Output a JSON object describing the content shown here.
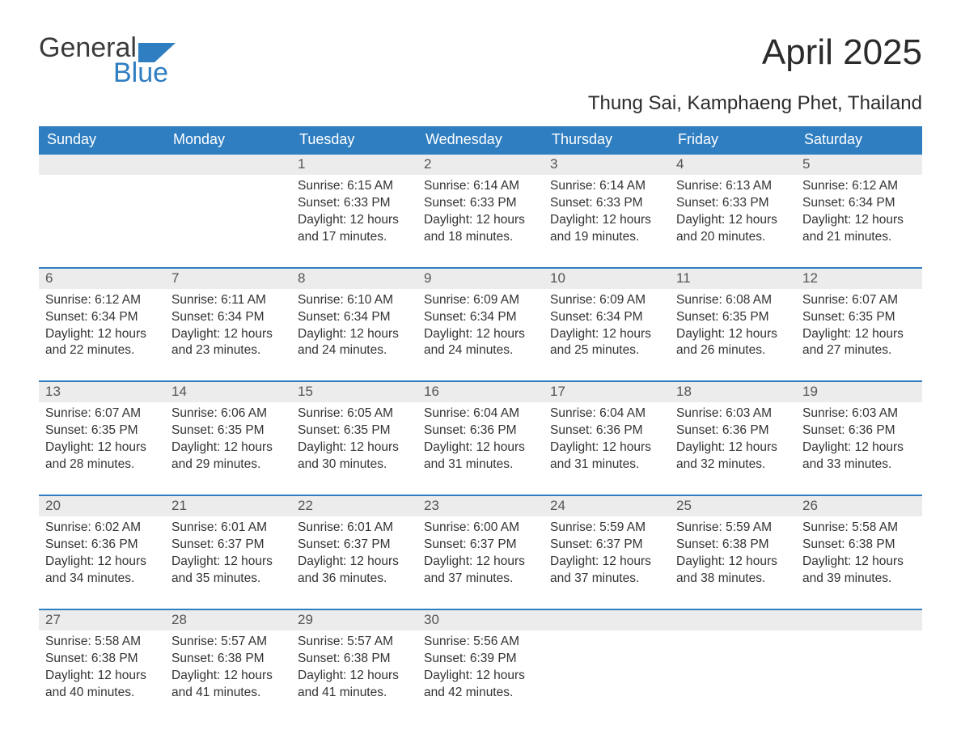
{
  "brand": {
    "word1": "General",
    "word2": "Blue",
    "logo_color": "#2f7ec1",
    "text_color": "#3b3b3b"
  },
  "title": "April 2025",
  "location": "Thung Sai, Kamphaeng Phet, Thailand",
  "colors": {
    "header_bg": "#2f7ec1",
    "header_text": "#ffffff",
    "strip_bg": "#ececec",
    "strip_border": "#2f7ec1",
    "body_text": "#333333",
    "daynum_text": "#555555",
    "page_bg": "#ffffff"
  },
  "weekdays": [
    "Sunday",
    "Monday",
    "Tuesday",
    "Wednesday",
    "Thursday",
    "Friday",
    "Saturday"
  ],
  "layout": {
    "columns": 7,
    "rows": 5,
    "first_day_column_index": 2
  },
  "days": [
    {
      "n": 1,
      "sunrise": "6:15 AM",
      "sunset": "6:33 PM",
      "daylight": "12 hours and 17 minutes."
    },
    {
      "n": 2,
      "sunrise": "6:14 AM",
      "sunset": "6:33 PM",
      "daylight": "12 hours and 18 minutes."
    },
    {
      "n": 3,
      "sunrise": "6:14 AM",
      "sunset": "6:33 PM",
      "daylight": "12 hours and 19 minutes."
    },
    {
      "n": 4,
      "sunrise": "6:13 AM",
      "sunset": "6:33 PM",
      "daylight": "12 hours and 20 minutes."
    },
    {
      "n": 5,
      "sunrise": "6:12 AM",
      "sunset": "6:34 PM",
      "daylight": "12 hours and 21 minutes."
    },
    {
      "n": 6,
      "sunrise": "6:12 AM",
      "sunset": "6:34 PM",
      "daylight": "12 hours and 22 minutes."
    },
    {
      "n": 7,
      "sunrise": "6:11 AM",
      "sunset": "6:34 PM",
      "daylight": "12 hours and 23 minutes."
    },
    {
      "n": 8,
      "sunrise": "6:10 AM",
      "sunset": "6:34 PM",
      "daylight": "12 hours and 24 minutes."
    },
    {
      "n": 9,
      "sunrise": "6:09 AM",
      "sunset": "6:34 PM",
      "daylight": "12 hours and 24 minutes."
    },
    {
      "n": 10,
      "sunrise": "6:09 AM",
      "sunset": "6:34 PM",
      "daylight": "12 hours and 25 minutes."
    },
    {
      "n": 11,
      "sunrise": "6:08 AM",
      "sunset": "6:35 PM",
      "daylight": "12 hours and 26 minutes."
    },
    {
      "n": 12,
      "sunrise": "6:07 AM",
      "sunset": "6:35 PM",
      "daylight": "12 hours and 27 minutes."
    },
    {
      "n": 13,
      "sunrise": "6:07 AM",
      "sunset": "6:35 PM",
      "daylight": "12 hours and 28 minutes."
    },
    {
      "n": 14,
      "sunrise": "6:06 AM",
      "sunset": "6:35 PM",
      "daylight": "12 hours and 29 minutes."
    },
    {
      "n": 15,
      "sunrise": "6:05 AM",
      "sunset": "6:35 PM",
      "daylight": "12 hours and 30 minutes."
    },
    {
      "n": 16,
      "sunrise": "6:04 AM",
      "sunset": "6:36 PM",
      "daylight": "12 hours and 31 minutes."
    },
    {
      "n": 17,
      "sunrise": "6:04 AM",
      "sunset": "6:36 PM",
      "daylight": "12 hours and 31 minutes."
    },
    {
      "n": 18,
      "sunrise": "6:03 AM",
      "sunset": "6:36 PM",
      "daylight": "12 hours and 32 minutes."
    },
    {
      "n": 19,
      "sunrise": "6:03 AM",
      "sunset": "6:36 PM",
      "daylight": "12 hours and 33 minutes."
    },
    {
      "n": 20,
      "sunrise": "6:02 AM",
      "sunset": "6:36 PM",
      "daylight": "12 hours and 34 minutes."
    },
    {
      "n": 21,
      "sunrise": "6:01 AM",
      "sunset": "6:37 PM",
      "daylight": "12 hours and 35 minutes."
    },
    {
      "n": 22,
      "sunrise": "6:01 AM",
      "sunset": "6:37 PM",
      "daylight": "12 hours and 36 minutes."
    },
    {
      "n": 23,
      "sunrise": "6:00 AM",
      "sunset": "6:37 PM",
      "daylight": "12 hours and 37 minutes."
    },
    {
      "n": 24,
      "sunrise": "5:59 AM",
      "sunset": "6:37 PM",
      "daylight": "12 hours and 37 minutes."
    },
    {
      "n": 25,
      "sunrise": "5:59 AM",
      "sunset": "6:38 PM",
      "daylight": "12 hours and 38 minutes."
    },
    {
      "n": 26,
      "sunrise": "5:58 AM",
      "sunset": "6:38 PM",
      "daylight": "12 hours and 39 minutes."
    },
    {
      "n": 27,
      "sunrise": "5:58 AM",
      "sunset": "6:38 PM",
      "daylight": "12 hours and 40 minutes."
    },
    {
      "n": 28,
      "sunrise": "5:57 AM",
      "sunset": "6:38 PM",
      "daylight": "12 hours and 41 minutes."
    },
    {
      "n": 29,
      "sunrise": "5:57 AM",
      "sunset": "6:38 PM",
      "daylight": "12 hours and 41 minutes."
    },
    {
      "n": 30,
      "sunrise": "5:56 AM",
      "sunset": "6:39 PM",
      "daylight": "12 hours and 42 minutes."
    }
  ],
  "labels": {
    "sunrise": "Sunrise: ",
    "sunset": "Sunset: ",
    "daylight": "Daylight: "
  },
  "typography": {
    "title_fontsize": 44,
    "location_fontsize": 24,
    "weekday_fontsize": 18,
    "body_fontsize": 15.5,
    "daynum_fontsize": 17
  }
}
